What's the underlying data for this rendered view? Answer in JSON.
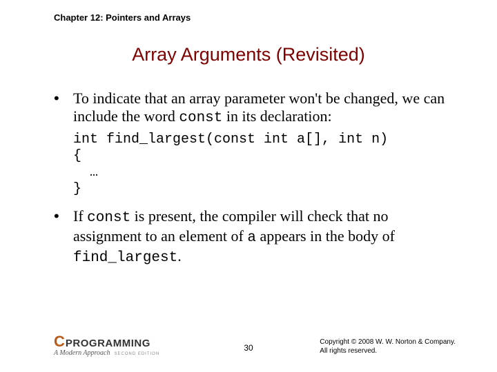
{
  "header": {
    "chapter": "Chapter 12: Pointers and Arrays"
  },
  "title": "Array Arguments (Revisited)",
  "bullets": [
    {
      "pre": "To indicate that an array parameter won't be changed, we can include the word ",
      "code1": "const",
      "post1": " in its declaration:"
    },
    {
      "pre": "If ",
      "code1": "const",
      "mid1": " is present, the compiler will check that no assignment to an element of ",
      "code2": "a",
      "mid2": " appears in the body of ",
      "code3": "find_largest",
      "post": "."
    }
  ],
  "code": {
    "line1": "int find_largest(const int a[], int n)",
    "line2": "{",
    "line3": "  …",
    "line4": "}"
  },
  "footer": {
    "logo_c": "C",
    "logo_prog": "PROGRAMMING",
    "logo_sub": "A Modern Approach",
    "logo_ed": "SECOND EDITION",
    "page": "30",
    "copyright1": "Copyright © 2008 W. W. Norton & Company.",
    "copyright2": "All rights reserved."
  },
  "colors": {
    "title": "#7f0000",
    "logo_c": "#b85a1a",
    "text": "#000000",
    "background": "#ffffff"
  },
  "fonts": {
    "body": "Times New Roman",
    "code": "Courier New",
    "header": "Arial",
    "title_size": 27,
    "body_size": 22,
    "code_size": 20
  }
}
